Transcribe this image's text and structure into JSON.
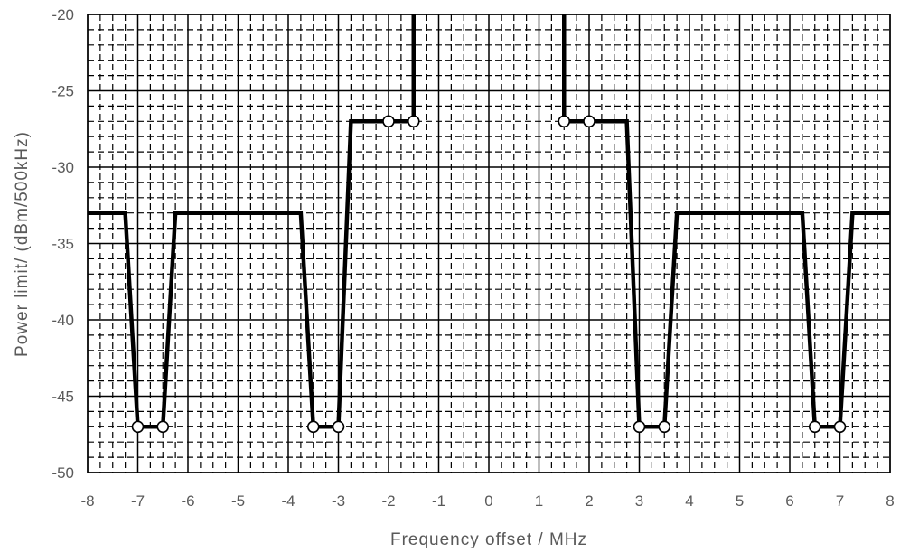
{
  "chart_data": {
    "type": "line",
    "title": "",
    "xlabel": "Frequency offset / MHz",
    "ylabel": "Power limit/ (dBm/500kHz)",
    "xlim": [
      -8,
      8
    ],
    "ylim": [
      -50,
      -20
    ],
    "x_ticks": [
      -8,
      -7,
      -6,
      -5,
      -4,
      -3,
      -2,
      -1,
      0,
      1,
      2,
      3,
      4,
      5,
      6,
      7,
      8
    ],
    "y_ticks": [
      -50,
      -45,
      -40,
      -35,
      -30,
      -25,
      -20
    ],
    "x_tick_labels": [
      "-8",
      "-7",
      "-6",
      "-5",
      "-4",
      "-3",
      "-2",
      "-1",
      "0",
      "1",
      "2",
      "3",
      "4",
      "5",
      "6",
      "7",
      "8"
    ],
    "y_tick_labels": [
      "-50",
      "-45",
      "-40",
      "-35",
      "-30",
      "-25",
      "-20"
    ],
    "grid": {
      "major": true,
      "minor": true,
      "minor_style": "dashed"
    },
    "series": [
      {
        "line_color": "#000000",
        "x": [
          -8,
          -7.25,
          -7,
          -6.5,
          -6.25,
          -3.75,
          -3.5,
          -3,
          -2.75,
          -2,
          -1.5,
          -1.5
        ],
        "y": [
          -33,
          -33,
          -47,
          -47,
          -33,
          -33,
          -47,
          -47,
          -27,
          -27,
          -27,
          -20
        ]
      },
      {
        "line_color": "#000000",
        "x": [
          1.5,
          1.5,
          2,
          2.75,
          3,
          3.5,
          3.75,
          6.25,
          6.5,
          7,
          7.25,
          8
        ],
        "y": [
          -20,
          -27,
          -27,
          -27,
          -47,
          -47,
          -33,
          -33,
          -47,
          -47,
          -33,
          -33
        ]
      }
    ],
    "markers": {
      "shape": "open-circle",
      "x": [
        -7,
        -6.5,
        -3.5,
        -3,
        -2,
        -1.5,
        1.5,
        2,
        3,
        3.5,
        6.5,
        7
      ],
      "y": [
        -47,
        -47,
        -47,
        -47,
        -27,
        -27,
        -27,
        -27,
        -47,
        -47,
        -47,
        -47
      ]
    }
  }
}
